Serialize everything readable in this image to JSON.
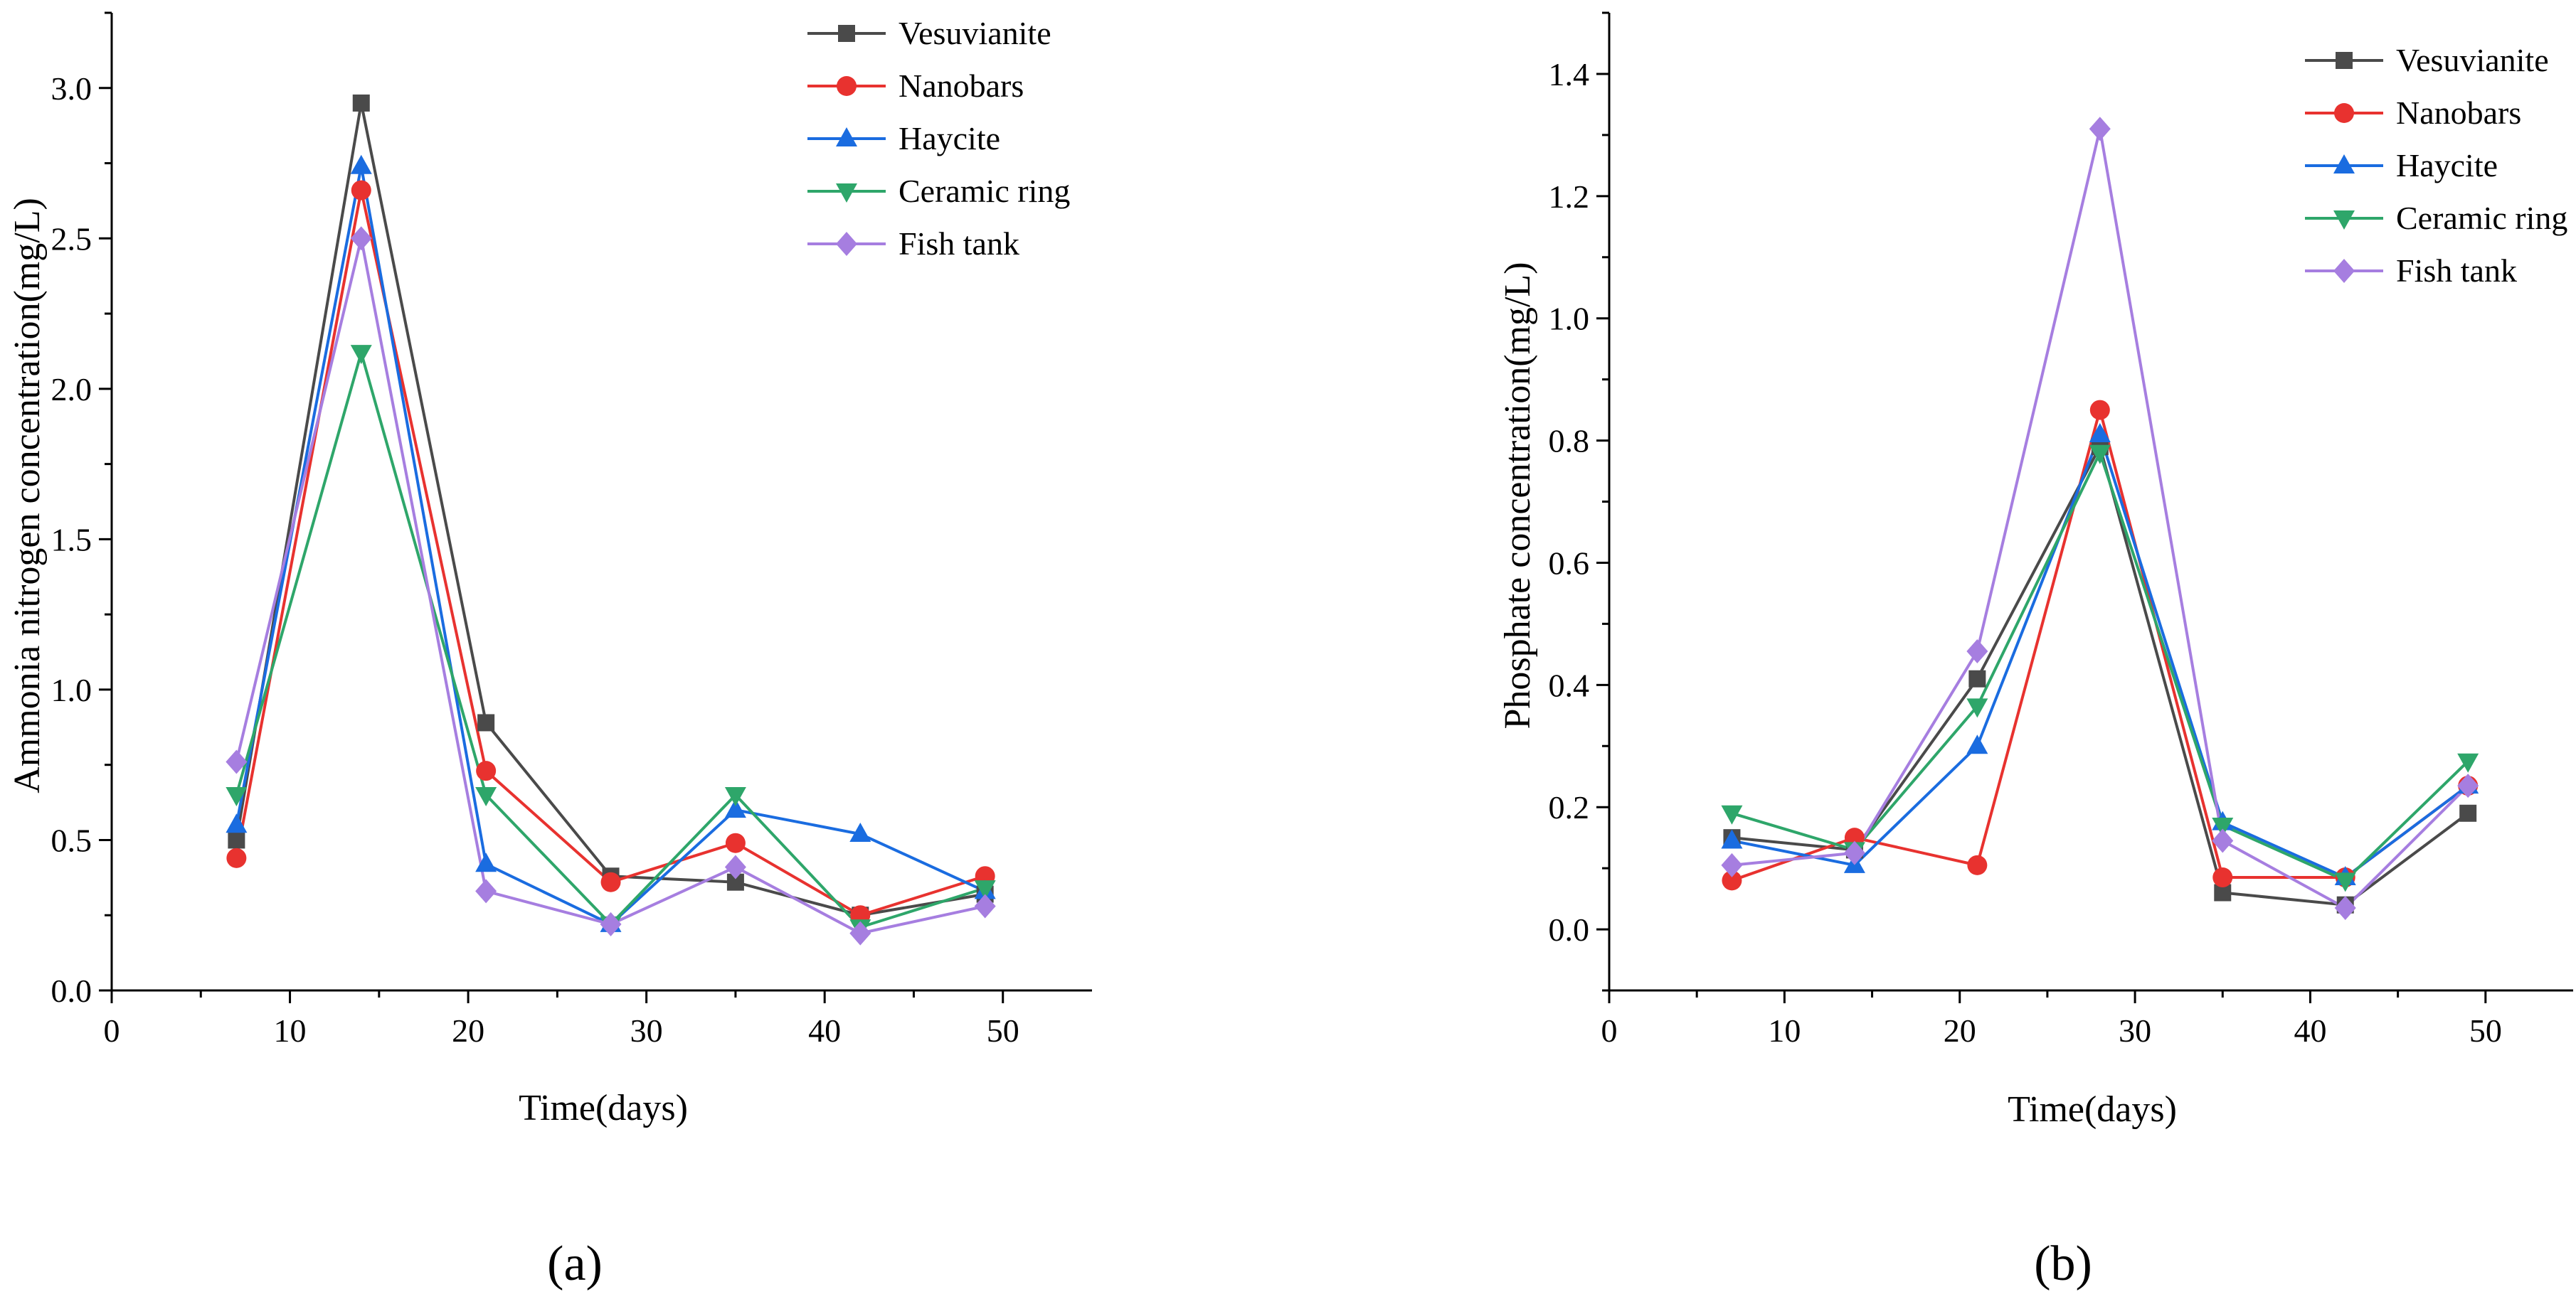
{
  "colors": {
    "Vesuvianite": "#4a4a4a",
    "Nanobars": "#e8322f",
    "Haycite": "#1a6ce0",
    "Ceramic ring": "#2ea66a",
    "Fish tank": "#a67ee0"
  },
  "chart_data": [
    {
      "type": "line",
      "panel_label": "(a)",
      "xlabel": "Time(days)",
      "ylabel": "Ammonia nitrogen concentration(mg/L)",
      "xlim": [
        0,
        55
      ],
      "ylim": [
        0,
        3.25
      ],
      "xticks": [
        0,
        10,
        20,
        30,
        40,
        50
      ],
      "xtick_labels": [
        "0",
        "10",
        "20",
        "30",
        "40",
        "50"
      ],
      "yticks": [
        0,
        0.5,
        1.0,
        1.5,
        2.0,
        2.5,
        3.0
      ],
      "ytick_labels": [
        "0.0",
        "0.5",
        "1.0",
        "1.5",
        "2.0",
        "2.5",
        "3.0"
      ],
      "x": [
        7,
        14,
        21,
        28,
        35,
        42,
        49
      ],
      "legend_position": "top-right",
      "series": [
        {
          "name": "Vesuvianite",
          "marker": "square",
          "values": [
            0.5,
            2.95,
            0.89,
            0.38,
            0.36,
            0.25,
            0.32
          ]
        },
        {
          "name": "Nanobars",
          "marker": "circle",
          "values": [
            0.44,
            2.66,
            0.73,
            0.36,
            0.49,
            0.25,
            0.38
          ]
        },
        {
          "name": "Haycite",
          "marker": "triangle-up",
          "values": [
            0.55,
            2.74,
            0.42,
            0.22,
            0.6,
            0.52,
            0.33
          ]
        },
        {
          "name": "Ceramic ring",
          "marker": "triangle-down",
          "values": [
            0.65,
            2.12,
            0.65,
            0.22,
            0.65,
            0.21,
            0.34
          ]
        },
        {
          "name": "Fish tank",
          "marker": "diamond",
          "values": [
            0.76,
            2.5,
            0.33,
            0.22,
            0.41,
            0.19,
            0.28
          ]
        }
      ]
    },
    {
      "type": "line",
      "panel_label": "(b)",
      "xlabel": "Time(days)",
      "ylabel": "Phosphate concentration(mg/L)",
      "xlim": [
        0,
        55
      ],
      "ylim": [
        -0.1,
        1.5
      ],
      "xticks": [
        0,
        10,
        20,
        30,
        40,
        50
      ],
      "xtick_labels": [
        "0",
        "10",
        "20",
        "30",
        "40",
        "50"
      ],
      "yticks": [
        0,
        0.2,
        0.4,
        0.6,
        0.8,
        1.0,
        1.2,
        1.4
      ],
      "ytick_labels": [
        "0.0",
        "0.2",
        "0.4",
        "0.6",
        "0.8",
        "1.0",
        "1.2",
        "1.4"
      ],
      "x": [
        7,
        14,
        21,
        28,
        35,
        42,
        49
      ],
      "legend_position": "top-right",
      "series": [
        {
          "name": "Vesuvianite",
          "marker": "square",
          "values": [
            0.15,
            0.13,
            0.41,
            0.79,
            0.06,
            0.04,
            0.19
          ]
        },
        {
          "name": "Nanobars",
          "marker": "circle",
          "values": [
            0.08,
            0.15,
            0.105,
            0.85,
            0.085,
            0.085,
            0.235
          ]
        },
        {
          "name": "Haycite",
          "marker": "triangle-up",
          "values": [
            0.145,
            0.105,
            0.3,
            0.81,
            0.175,
            0.085,
            0.235
          ]
        },
        {
          "name": "Ceramic ring",
          "marker": "triangle-down",
          "values": [
            0.19,
            0.13,
            0.365,
            0.78,
            0.17,
            0.08,
            0.275
          ]
        },
        {
          "name": "Fish tank",
          "marker": "diamond",
          "values": [
            0.105,
            0.125,
            0.455,
            1.31,
            0.145,
            0.035,
            0.235
          ]
        }
      ]
    }
  ]
}
